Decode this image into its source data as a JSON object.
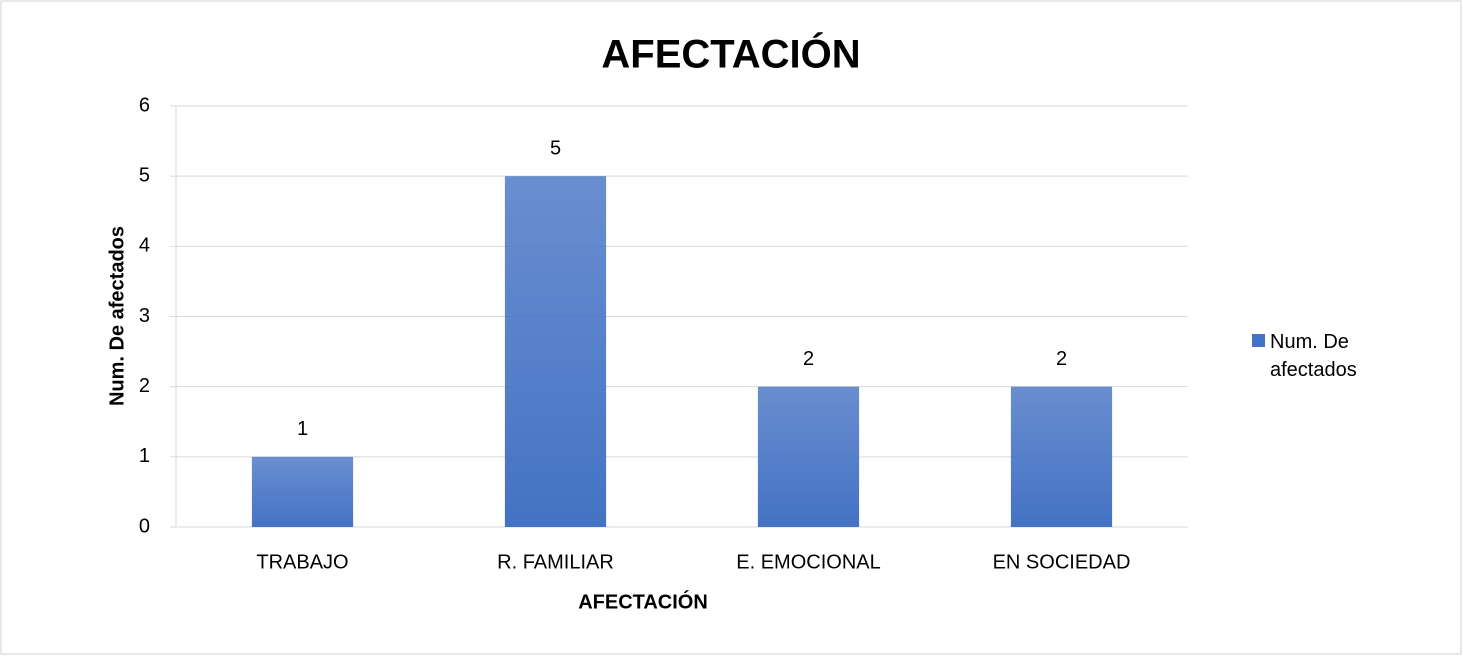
{
  "chart_data": {
    "type": "bar",
    "title": "AFECTACIÓN",
    "x_label": "AFECTACIÓN",
    "y_label": "Num. De afectados",
    "categories": [
      "TRABAJO",
      "R. FAMILIAR",
      "E. EMOCIONAL",
      "EN SOCIEDAD"
    ],
    "series": [
      {
        "name": "Num. De afectados",
        "color": "#4472c4",
        "values": [
          1,
          5,
          2,
          2
        ]
      }
    ],
    "ylim": [
      0,
      6
    ],
    "yticks": [
      0,
      1,
      2,
      3,
      4,
      5,
      6
    ],
    "grid": true,
    "legend": "right"
  }
}
